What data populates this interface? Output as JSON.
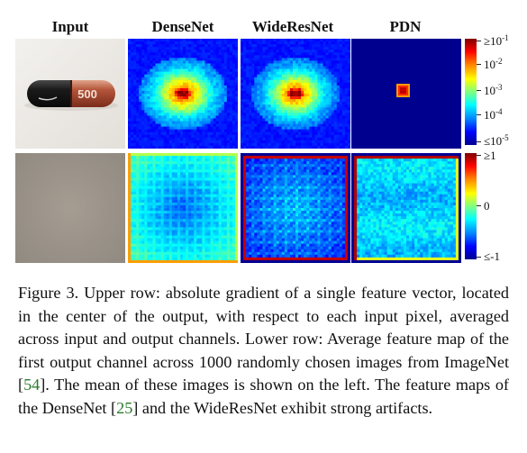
{
  "columns": [
    "Input",
    "DenseNet",
    "WideResNet",
    "PDN"
  ],
  "pill_label": "500",
  "colorbar_top": {
    "labels": [
      {
        "pre": "≥10",
        "exp": "-1"
      },
      {
        "pre": "10",
        "exp": "-2"
      },
      {
        "pre": "10",
        "exp": "-3"
      },
      {
        "pre": "10",
        "exp": "-4"
      },
      {
        "pre": "≤10",
        "exp": "-5"
      }
    ]
  },
  "colorbar_bottom": {
    "labels": [
      "≥1",
      "0",
      "≤-1"
    ]
  },
  "caption": {
    "parts": [
      {
        "text": "Figure 3. Upper row:  absolute gradient of a single feature vector, located in the center of the output, with respect to each input pixel, averaged across input and output channels. Lower row: Average feature map of the first output channel across 1000 randomly chosen images from ImageNet ["
      },
      {
        "text": "54",
        "cite": true
      },
      {
        "text": "].  The mean of these images is shown on the left. The feature maps of the DenseNet ["
      },
      {
        "text": "25",
        "cite": true
      },
      {
        "text": "] and the WideResNet exhibit strong artifacts."
      }
    ]
  },
  "colors": {
    "jet_dark_blue": "#00008f",
    "jet_blue": "#0000ff",
    "jet_cyan": "#00ffff",
    "jet_yellow": "#ffff00",
    "jet_red": "#ff0000",
    "jet_dark_red": "#800000",
    "input_bg": "#ece9e4",
    "mean_gray": "#9c958b",
    "cite_green": "#2a7a2a"
  }
}
